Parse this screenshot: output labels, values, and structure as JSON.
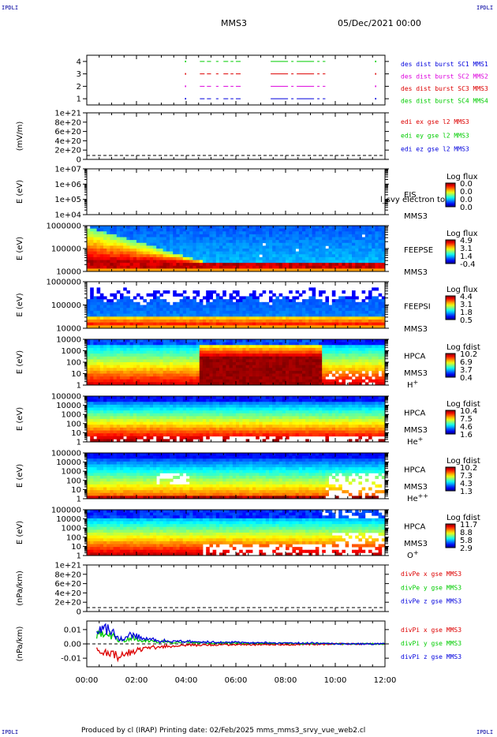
{
  "header": {
    "corner_label": "IPDLI",
    "spacecraft": "MMS3",
    "datetime": "05/Dec/2021 00:00"
  },
  "footer": {
    "credit": "Produced by cl (IRAP)   Printing date: 02/Feb/2025   mms_mms3_srvy_vue_web2.cl"
  },
  "colors": {
    "blue": "#0000dd",
    "magenta": "#dd00dd",
    "red": "#dd0000",
    "green": "#00cc00",
    "gray_empty": "#b0b0b0"
  },
  "chart_data": {
    "type": "heatmap",
    "x_axis": {
      "range": [
        "00:00",
        "12:00"
      ],
      "tick_labels": [
        "00:00",
        "02:00",
        "04:00",
        "06:00",
        "08:00",
        "10:00",
        "12:00"
      ]
    },
    "panels": [
      {
        "id": "burst",
        "type": "line",
        "ylim": [
          0.5,
          4.5
        ],
        "ytick_labels": [
          "1",
          "2",
          "3",
          "4"
        ],
        "legend": [
          {
            "text": "des dist burst SC1 MMS1",
            "color": "blue"
          },
          {
            "text": "des dist burst SC2 MMS2",
            "color": "magenta"
          },
          {
            "text": "des dist burst SC3 MMS3",
            "color": "red"
          },
          {
            "text": "des dist burst SC4 MMS4",
            "color": "green"
          }
        ],
        "burst_intervals_hours": [
          [
            4.55,
            5.0
          ],
          [
            5.2,
            5.3
          ],
          [
            5.5,
            5.9
          ],
          [
            6.0,
            6.2
          ],
          [
            7.4,
            9.6
          ]
        ]
      },
      {
        "id": "edi",
        "type": "line",
        "ylabel": "(mV/m)",
        "ylim": [
          0,
          1e+21
        ],
        "ytick_labels": [
          "0",
          "2e+20",
          "4e+20",
          "6e+20",
          "8e+20",
          "1e+21"
        ],
        "legend": [
          {
            "text": "edi ex gse l2 MMS3",
            "color": "red"
          },
          {
            "text": "edi ey gse l2 MMS3",
            "color": "green"
          },
          {
            "text": "edi ez gse l2 MMS3",
            "color": "blue"
          }
        ],
        "series": [],
        "note": "no data, dashed zero line"
      },
      {
        "id": "eis",
        "type": "heatmap",
        "ylabel": "E (eV)",
        "ylim": [
          10000,
          10000000
        ],
        "scale": "log",
        "ytick_labels": [
          "1e+04",
          "1e+05",
          "1e+06",
          "1e+07"
        ],
        "side_labels": [
          "EIS",
          "MMS3"
        ],
        "overlay_text": "l_svy electron to",
        "colorbar": {
          "title": "Log flux",
          "tick_labels": [
            "0.0",
            "0.0",
            "0.0",
            "0.0"
          ]
        },
        "data": "empty"
      },
      {
        "id": "feepse",
        "type": "heatmap",
        "ylabel": "E (eV)",
        "ylim": [
          10000,
          1000000
        ],
        "scale": "log",
        "ytick_labels": [
          "10000",
          "100000",
          "1000000"
        ],
        "side_labels": [
          "FEEPSE",
          "MMS3"
        ],
        "colorbar": {
          "title": "Log flux",
          "tick_labels": [
            "4.9",
            "3.1",
            "1.4",
            "-0.4"
          ]
        }
      },
      {
        "id": "feepsi",
        "type": "heatmap",
        "ylabel": "E (eV)",
        "ylim": [
          10000,
          1000000
        ],
        "scale": "log",
        "ytick_labels": [
          "10000",
          "100000",
          "1000000"
        ],
        "side_labels": [
          "FEEPSI",
          "MMS3"
        ],
        "colorbar": {
          "title": "Log flux",
          "tick_labels": [
            "4.4",
            "3.1",
            "1.8",
            "0.5"
          ]
        }
      },
      {
        "id": "hpca_h",
        "type": "heatmap",
        "ylabel": "E (eV)",
        "ylim": [
          1,
          10000
        ],
        "scale": "log",
        "ytick_labels": [
          "1",
          "10",
          "100",
          "1000",
          "10000"
        ],
        "side_labels": [
          "HPCA",
          "MMS3"
        ],
        "species": {
          "base": "H",
          "sup": "+"
        },
        "colorbar": {
          "title": "Log fdist",
          "tick_labels": [
            "10.2",
            "6.9",
            "3.7",
            "0.4"
          ]
        }
      },
      {
        "id": "hpca_he",
        "type": "heatmap",
        "ylabel": "E (eV)",
        "ylim": [
          1,
          100000
        ],
        "scale": "log",
        "ytick_labels": [
          "1",
          "10",
          "100",
          "1000",
          "10000",
          "100000"
        ],
        "side_labels": [
          "HPCA",
          "MMS3"
        ],
        "species": {
          "base": "He",
          "sup": "+"
        },
        "colorbar": {
          "title": "Log fdist",
          "tick_labels": [
            "10.4",
            "7.5",
            "4.6",
            "1.6"
          ]
        }
      },
      {
        "id": "hpca_he2",
        "type": "heatmap",
        "ylabel": "E (eV)",
        "ylim": [
          1,
          100000
        ],
        "scale": "log",
        "ytick_labels": [
          "1",
          "10",
          "100",
          "1000",
          "10000",
          "100000"
        ],
        "side_labels": [
          "HPCA",
          "MMS3"
        ],
        "species": {
          "base": "He",
          "sup": "++"
        },
        "colorbar": {
          "title": "Log fdist",
          "tick_labels": [
            "10.2",
            "7.3",
            "4.3",
            "1.3"
          ]
        }
      },
      {
        "id": "hpca_o",
        "type": "heatmap",
        "ylabel": "E (eV)",
        "ylim": [
          1,
          100000
        ],
        "scale": "log",
        "ytick_labels": [
          "1",
          "10",
          "100",
          "1000",
          "10000",
          "100000"
        ],
        "side_labels": [
          "HPCA",
          "MMS3"
        ],
        "species": {
          "base": "O",
          "sup": "+"
        },
        "colorbar": {
          "title": "Log fdist",
          "tick_labels": [
            "11.7",
            "8.8",
            "5.8",
            "2.9"
          ]
        }
      },
      {
        "id": "divpe",
        "type": "line",
        "ylabel": "(nPa/km)",
        "ylim": [
          0,
          1e+21
        ],
        "ytick_labels": [
          "0",
          "2e+20",
          "4e+20",
          "6e+20",
          "8e+20",
          "1e+21"
        ],
        "legend": [
          {
            "text": "divPe x gse MMS3",
            "color": "red"
          },
          {
            "text": "divPe y gse MMS3",
            "color": "green"
          },
          {
            "text": "divPe z gse MMS3",
            "color": "blue"
          }
        ],
        "series": [],
        "note": "no data, dashed zero line"
      },
      {
        "id": "divpi",
        "type": "line",
        "ylabel": "(nPa/km)",
        "ylim": [
          -0.016,
          0.016
        ],
        "ytick_labels": [
          "-0.01",
          "0.00",
          "0.01"
        ],
        "legend": [
          {
            "text": "divPi x gse MMS3",
            "color": "red"
          },
          {
            "text": "divPi y gse MMS3",
            "color": "green"
          },
          {
            "text": "divPi z gse MMS3",
            "color": "blue"
          }
        ],
        "series": [
          {
            "name": "divPi x gse MMS3",
            "color": "red",
            "x_hours": [
              0.4,
              0.6,
              0.8,
              1.0,
              1.2,
              1.5,
              1.8,
              2.0,
              2.5,
              3.0,
              3.5,
              4.0,
              5.0,
              6.0,
              7.0,
              8.0,
              9.0,
              9.7,
              10.0,
              11.0,
              12.0
            ],
            "values": [
              -0.004,
              -0.006,
              -0.007,
              -0.008,
              -0.009,
              -0.007,
              -0.006,
              -0.004,
              -0.003,
              -0.002,
              -0.0015,
              -0.001,
              -0.0008,
              -0.0006,
              -0.0005,
              -0.0005,
              -0.0004,
              -0.0003,
              0.0,
              0.0,
              0.0
            ]
          },
          {
            "name": "divPi y gse MMS3",
            "color": "green",
            "x_hours": [
              0.4,
              0.6,
              0.8,
              1.0,
              1.2,
              1.5,
              1.8,
              2.0,
              2.5,
              3.0,
              3.5,
              4.0,
              5.0,
              6.0,
              7.0,
              8.0,
              9.0,
              9.7,
              10.0,
              11.0,
              12.0
            ],
            "values": [
              0.006,
              0.008,
              0.007,
              0.006,
              0.003,
              0.002,
              0.004,
              0.003,
              0.002,
              0.0015,
              0.001,
              0.001,
              0.0008,
              0.0006,
              0.0005,
              0.0004,
              0.0003,
              0.0002,
              0.0,
              0.0,
              0.0
            ]
          },
          {
            "name": "divPi z gse MMS3",
            "color": "blue",
            "x_hours": [
              0.4,
              0.6,
              0.8,
              1.0,
              1.2,
              1.5,
              1.8,
              2.0,
              2.5,
              3.0,
              3.5,
              4.0,
              5.0,
              6.0,
              7.0,
              8.0,
              9.0,
              9.7,
              10.0,
              11.0,
              12.0
            ],
            "values": [
              0.008,
              0.011,
              0.01,
              0.009,
              0.005,
              0.003,
              0.006,
              0.005,
              0.003,
              0.002,
              0.002,
              0.0015,
              0.0012,
              0.001,
              0.0008,
              0.0006,
              0.0005,
              0.0003,
              0.0,
              0.0,
              0.0
            ]
          }
        ]
      }
    ]
  }
}
